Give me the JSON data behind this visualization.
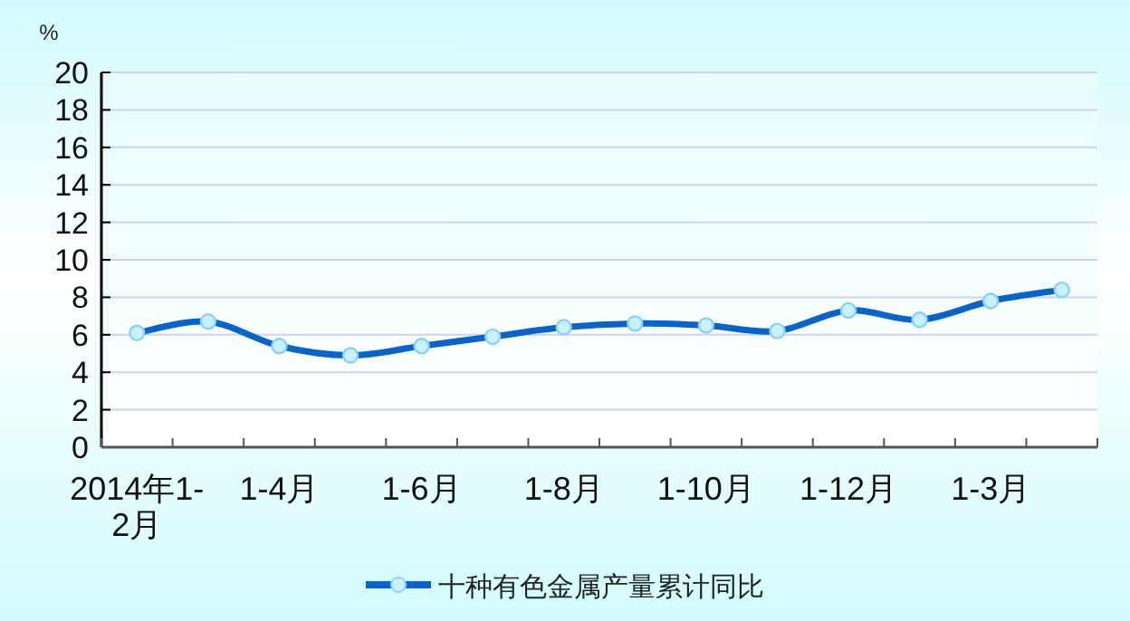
{
  "chart_data": {
    "type": "line",
    "ylabel": "%",
    "categories": [
      "2014年1-2月",
      null,
      "1-4月",
      null,
      "1-6月",
      null,
      "1-8月",
      null,
      "1-10月",
      null,
      "1-12月",
      null,
      "1-3月",
      null
    ],
    "series": [
      {
        "name": "十种有色金属产量累计同比",
        "color": "#0a64c8",
        "values": [
          6.1,
          6.7,
          5.4,
          4.9,
          5.4,
          5.9,
          6.4,
          6.6,
          6.5,
          6.2,
          7.3,
          6.8,
          7.8,
          8.4
        ]
      }
    ],
    "ylim": [
      0,
      20
    ],
    "yticks": [
      0,
      2,
      4,
      6,
      8,
      10,
      12,
      14,
      16,
      18,
      20
    ],
    "grid": "y",
    "legend": "bottom",
    "marker": "circle",
    "line_style": "solid"
  }
}
